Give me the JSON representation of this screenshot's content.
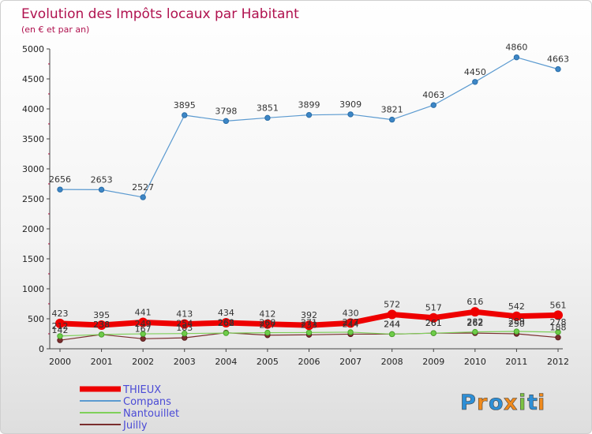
{
  "chart_data": {
    "type": "line",
    "title": "Evolution des Impôts locaux par Habitant",
    "subtitle": "(en € et par an)",
    "xlabel": "",
    "ylabel": "",
    "ylim": [
      0,
      5000
    ],
    "y_ticks": [
      "0",
      "500",
      "1000",
      "1500",
      "2000",
      "2500",
      "3000",
      "3500",
      "4000",
      "4500",
      "5000"
    ],
    "x": [
      "2000",
      "2001",
      "2002",
      "2003",
      "2004",
      "2005",
      "2006",
      "2007",
      "2008",
      "2009",
      "2010",
      "2011",
      "2012"
    ],
    "grid": false,
    "legend_position": "bottom-left",
    "series": [
      {
        "name": "THIEUX",
        "color": "#ee0000",
        "values": [
          423,
          395,
          441,
          413,
          434,
          412,
          392,
          430,
          572,
          517,
          616,
          542,
          561
        ],
        "labels": [
          "423",
          "395",
          "441",
          "413",
          "434",
          "412",
          "392",
          "430",
          "572",
          "517",
          "616",
          "542",
          "561"
        ]
      },
      {
        "name": "Compans",
        "color": "#5b9ad0",
        "values": [
          2656,
          2653,
          2527,
          3895,
          3798,
          3851,
          3899,
          3909,
          3821,
          4063,
          4450,
          4860,
          4663
        ],
        "labels": [
          "2656",
          "2653",
          "2527",
          "3895",
          "3798",
          "3851",
          "3899",
          "3909",
          "3821",
          "4063",
          "4450",
          "4860",
          "4663"
        ]
      },
      {
        "name": "Nantouillet",
        "color": "#7fd05a",
        "values": [
          212,
          238,
          249,
          254,
          262,
          268,
          271,
          277,
          244,
          261,
          282,
          289,
          278
        ],
        "labels": [
          "212",
          "238",
          "249",
          "254",
          "262",
          "268",
          "271",
          "277",
          "244",
          "261",
          "282",
          "289",
          "278"
        ]
      },
      {
        "name": "Juilly",
        "color": "#7a2e2e",
        "values": [
          142,
          238,
          167,
          183,
          268,
          227,
          233,
          244,
          244,
          261,
          262,
          250,
          188
        ],
        "labels": [
          "142",
          "238",
          "167",
          "183",
          "268",
          "227",
          "233",
          "244",
          "244",
          "261",
          "262",
          "250",
          "188"
        ]
      }
    ]
  },
  "logo": {
    "text": "Proxiti",
    "letters": [
      {
        "char": "P",
        "color": "#2e8fd6"
      },
      {
        "char": "r",
        "color": "#f08a1c"
      },
      {
        "char": "o",
        "color": "#2e8fd6"
      },
      {
        "char": "x",
        "color": "#f08a1c"
      },
      {
        "char": "i",
        "color": "#7cc242"
      },
      {
        "char": "t",
        "color": "#2e8fd6"
      },
      {
        "char": "i",
        "color": "#f08a1c"
      }
    ]
  }
}
